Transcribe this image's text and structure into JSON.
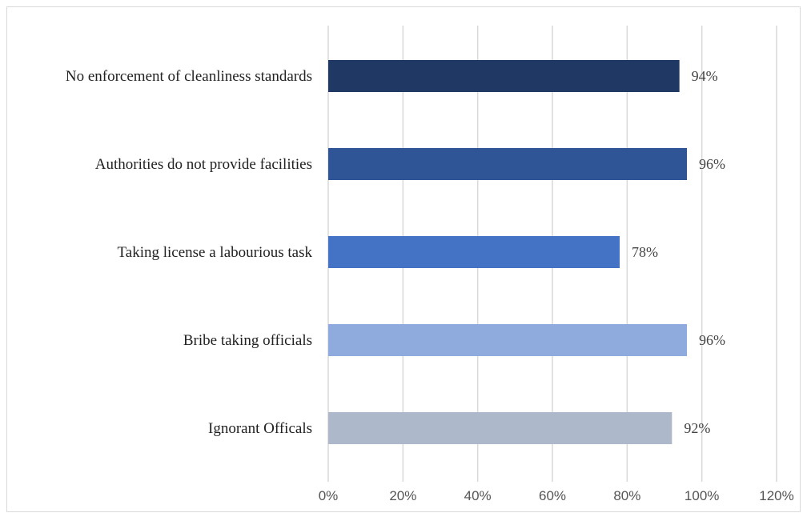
{
  "chart_data": {
    "type": "bar",
    "orientation": "horizontal",
    "categories": [
      "No enforcement of cleanliness standards",
      "Authorities do not provide facilities",
      "Taking license a labourious task",
      "Bribe taking officials",
      "Ignorant Officals"
    ],
    "values": [
      94,
      96,
      78,
      96,
      92
    ],
    "data_labels": [
      "94%",
      "96%",
      "78%",
      "96%",
      "92%"
    ],
    "bar_colors": [
      "#1f3864",
      "#2f5597",
      "#4472c4",
      "#8faadc",
      "#adb9ca"
    ],
    "xlim": [
      0,
      120
    ],
    "x_ticks": [
      0,
      20,
      40,
      60,
      80,
      100,
      120
    ],
    "x_tick_labels": [
      "0%",
      "20%",
      "40%",
      "60%",
      "80%",
      "100%",
      "120%"
    ],
    "grid": true,
    "grid_color": "#d9d9d9",
    "title": "",
    "xlabel": "",
    "ylabel": "",
    "legend": "none"
  }
}
